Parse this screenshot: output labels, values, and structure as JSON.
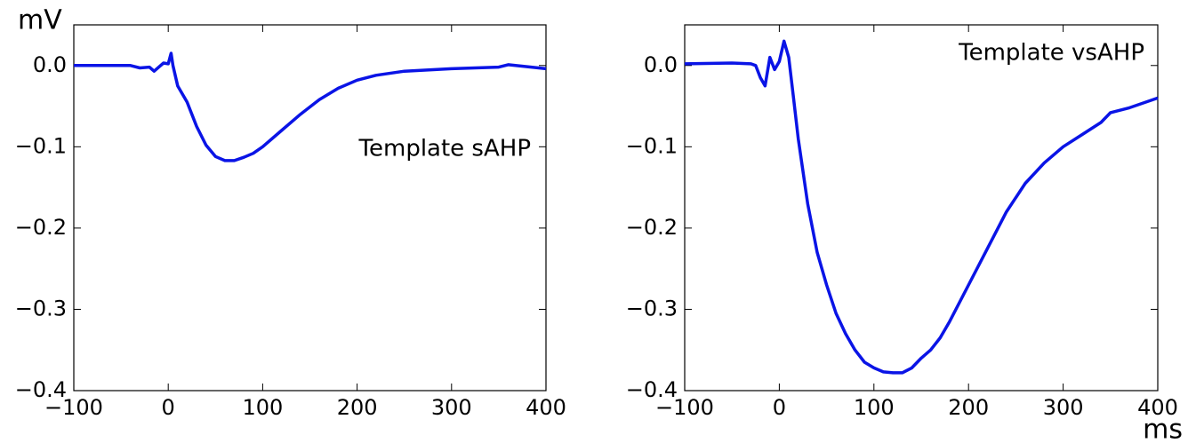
{
  "chart_data": [
    {
      "type": "line",
      "y_label": "mV",
      "annotation": "Template sAHP",
      "color": "#0a14e6",
      "x": [
        -100,
        -80,
        -60,
        -40,
        -30,
        -20,
        -15,
        -10,
        -5,
        0,
        3,
        5,
        10,
        20,
        30,
        40,
        50,
        60,
        70,
        80,
        90,
        100,
        120,
        140,
        160,
        180,
        200,
        220,
        250,
        300,
        350,
        360,
        400
      ],
      "values": [
        0.0,
        0.0,
        0.0,
        0.0,
        -0.003,
        -0.002,
        -0.007,
        -0.002,
        0.003,
        0.002,
        0.015,
        0.0,
        -0.025,
        -0.045,
        -0.075,
        -0.098,
        -0.112,
        -0.117,
        -0.117,
        -0.113,
        -0.108,
        -0.1,
        -0.08,
        -0.06,
        -0.042,
        -0.028,
        -0.018,
        -0.012,
        -0.007,
        -0.004,
        -0.002,
        0.001,
        -0.004
      ],
      "xlim": [
        -100,
        400
      ],
      "ylim": [
        -0.4,
        0.05
      ],
      "xticks": [
        {
          "value": -100,
          "label": "−100"
        },
        0,
        100,
        200,
        300,
        400
      ],
      "yticks": [
        {
          "value": 0,
          "label": "0.0"
        },
        {
          "value": -0.1,
          "label": "−0.1"
        },
        {
          "value": -0.2,
          "label": "−0.2"
        },
        {
          "value": -0.3,
          "label": "−0.3"
        },
        {
          "value": -0.4,
          "label": "−0.4"
        }
      ]
    },
    {
      "type": "line",
      "x_label": "ms",
      "annotation": "Template vsAHP",
      "color": "#0a14e6",
      "x": [
        -100,
        -50,
        -30,
        -25,
        -20,
        -15,
        -10,
        -5,
        0,
        5,
        10,
        15,
        20,
        30,
        40,
        50,
        60,
        70,
        80,
        90,
        100,
        110,
        120,
        130,
        140,
        150,
        160,
        170,
        180,
        200,
        220,
        240,
        260,
        280,
        300,
        320,
        340,
        350,
        370,
        400
      ],
      "values": [
        0.002,
        0.003,
        0.002,
        0.0,
        -0.015,
        -0.025,
        0.01,
        -0.005,
        0.005,
        0.03,
        0.01,
        -0.04,
        -0.09,
        -0.17,
        -0.23,
        -0.27,
        -0.305,
        -0.33,
        -0.35,
        -0.365,
        -0.372,
        -0.377,
        -0.378,
        -0.378,
        -0.372,
        -0.36,
        -0.35,
        -0.335,
        -0.315,
        -0.27,
        -0.225,
        -0.18,
        -0.145,
        -0.12,
        -0.1,
        -0.085,
        -0.07,
        -0.058,
        -0.052,
        -0.04
      ],
      "xlim": [
        -100,
        400
      ],
      "ylim": [
        -0.4,
        0.05
      ],
      "xticks": [
        {
          "value": -100,
          "label": "−100"
        },
        0,
        100,
        200,
        300,
        400
      ],
      "yticks": [
        {
          "value": 0,
          "label": "0.0"
        },
        {
          "value": -0.1,
          "label": "−0.1"
        },
        {
          "value": -0.2,
          "label": "−0.2"
        },
        {
          "value": -0.3,
          "label": "−0.3"
        },
        {
          "value": -0.4,
          "label": "−0.4"
        }
      ]
    }
  ]
}
